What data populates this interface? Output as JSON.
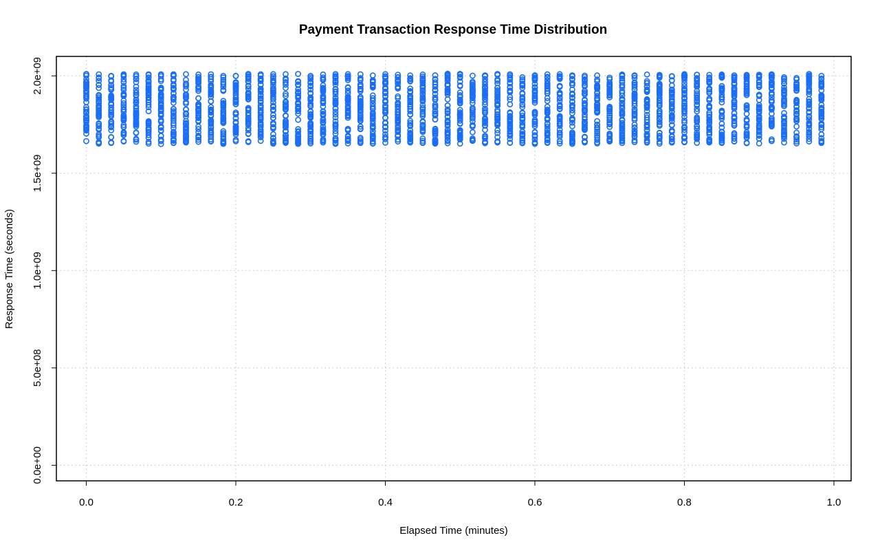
{
  "chart_data": {
    "type": "scatter",
    "title": "Payment Transaction Response Time Distribution",
    "xlabel": "Elapsed Time (minutes)",
    "ylabel": "Response Time (seconds)",
    "xlim": [
      -0.04,
      1.023
    ],
    "ylim": [
      -80000000.0,
      2100000000.0
    ],
    "x_ticks": [
      0.0,
      0.2,
      0.4,
      0.6,
      0.8,
      1.0
    ],
    "x_tick_labels": [
      "0.0",
      "0.2",
      "0.4",
      "0.6",
      "0.8",
      "1.0"
    ],
    "y_ticks": [
      0,
      500000000,
      1000000000,
      1500000000,
      2000000000
    ],
    "y_tick_labels": [
      "0.0e+00",
      "5.0e+08",
      "1.0e+09",
      "1.5e+09",
      "2.0e+09"
    ],
    "grid": true,
    "marker": "open-circle",
    "color": "#1a6ef5",
    "series": [
      {
        "x": [
          0.0,
          0.0167,
          0.0333,
          0.05,
          0.0667,
          0.0833,
          0.1,
          0.1167,
          0.1333,
          0.15,
          0.1667,
          0.1833,
          0.2,
          0.2167,
          0.2333,
          0.25,
          0.2667,
          0.2833,
          0.3,
          0.3167,
          0.3333,
          0.35,
          0.3667,
          0.3833,
          0.4,
          0.4167,
          0.4333,
          0.45,
          0.4667,
          0.4833,
          0.5,
          0.5167,
          0.5333,
          0.55,
          0.5667,
          0.5833,
          0.6,
          0.6167,
          0.6333,
          0.65,
          0.6667,
          0.6833,
          0.7,
          0.7167,
          0.7333,
          0.75,
          0.7667,
          0.7833,
          0.8,
          0.8167,
          0.8333,
          0.85,
          0.8667,
          0.8833,
          0.9,
          0.9167,
          0.9333,
          0.95,
          0.9667,
          0.9833
        ],
        "y_min": [
          1665000000,
          1652000000,
          1655000000,
          1663000000,
          1662000000,
          1652000000,
          1650000000,
          1655000000,
          1658000000,
          1661000000,
          1663000000,
          1651000000,
          1664000000,
          1660000000,
          1666000000,
          1652000000,
          1656000000,
          1651000000,
          1653000000,
          1658000000,
          1651000000,
          1653000000,
          1655000000,
          1652000000,
          1657000000,
          1663000000,
          1658000000,
          1655000000,
          1652000000,
          1654000000,
          1652000000,
          1666000000,
          1654000000,
          1658000000,
          1656000000,
          1654000000,
          1651000000,
          1656000000,
          1653000000,
          1651000000,
          1658000000,
          1653000000,
          1663000000,
          1655000000,
          1660000000,
          1657000000,
          1652000000,
          1658000000,
          1659000000,
          1656000000,
          1658000000,
          1655000000,
          1663000000,
          1654000000,
          1653000000,
          1665000000,
          1658000000,
          1653000000,
          1663000000,
          1655000000
        ],
        "y_max": [
          2010000000,
          2008000000,
          2000000000,
          2008000000,
          2007000000,
          2008000000,
          2008000000,
          2008000000,
          2009000000,
          2007000000,
          2008000000,
          2000000000,
          2000000000,
          2010000000,
          2008000000,
          2009000000,
          2009000000,
          2010000000,
          2000000000,
          2007000000,
          2009000000,
          2009000000,
          2008000000,
          2002000000,
          2009000000,
          2006000000,
          2002000000,
          2007000000,
          2003000000,
          2011000000,
          2010000000,
          2001000000,
          2003000000,
          2010000000,
          2008000000,
          1993000000,
          2003000000,
          2008000000,
          2009000000,
          2003000000,
          2001000000,
          2002000000,
          1991000000,
          2007000000,
          2003000000,
          2007000000,
          2005000000,
          1999000000,
          2009000000,
          2006000000,
          2005000000,
          2007000000,
          2003000000,
          2005000000,
          2006000000,
          2008000000,
          1993000000,
          1989000000,
          2010000000,
          2000000000
        ]
      }
    ]
  }
}
